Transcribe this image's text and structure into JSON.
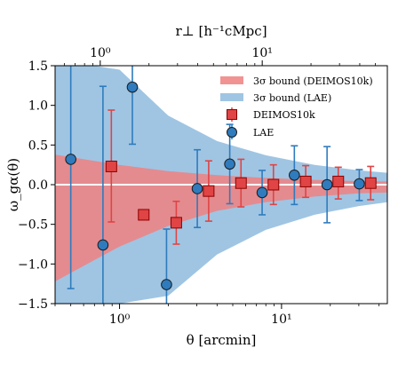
{
  "chart_data": {
    "type": "scatter",
    "xscale": "log",
    "xlim": [
      0.4,
      45
    ],
    "ylim": [
      -1.5,
      1.5
    ],
    "xlabel": "θ [arcmin]",
    "ylabel": "ω_gα(θ)",
    "top_xlabel": "r⊥ [h⁻¹cMpc]",
    "x_ticks": [
      1,
      10
    ],
    "x_tick_labels": [
      "10⁰",
      "10¹"
    ],
    "y_ticks": [
      -1.5,
      -1.0,
      -0.5,
      0.0,
      0.5,
      1.0,
      1.5
    ],
    "y_tick_labels": [
      "−1.5",
      "−1.0",
      "−0.5",
      "0.0",
      "0.5",
      "1.0",
      "1.5"
    ],
    "top_ticks": [
      1,
      10
    ],
    "top_tick_labels": [
      "10⁰",
      "10¹"
    ],
    "top_tick_theta": [
      0.76,
      7.6
    ],
    "zero_line": true,
    "legend_position": "top-right",
    "colors": {
      "deimos_band": "#f08080",
      "lae_band": "#7fb2d9",
      "deimos_marker": "#e04444",
      "deimos_edge": "#8b0000",
      "lae_marker": "#2f7bbd",
      "lae_edge": "#1a1a1a",
      "lae_err": "#2f7bbd",
      "deimos_err": "#e04444"
    },
    "bands": [
      {
        "name": "3σ bound (DEIMOS10k)",
        "x": [
          0.4,
          0.7,
          1.0,
          2.0,
          4.0,
          8.0,
          16.0,
          30.0,
          45.0
        ],
        "upper": [
          0.38,
          0.3,
          0.25,
          0.17,
          0.12,
          0.085,
          0.06,
          0.045,
          0.04
        ],
        "lower": [
          -1.22,
          -0.95,
          -0.78,
          -0.52,
          -0.33,
          -0.22,
          -0.15,
          -0.11,
          -0.1
        ]
      },
      {
        "name": "3σ bound (LAE)",
        "x": [
          0.4,
          0.7,
          1.0,
          2.0,
          4.0,
          8.0,
          16.0,
          30.0,
          45.0
        ],
        "upper": [
          1.5,
          1.5,
          1.45,
          0.87,
          0.55,
          0.37,
          0.25,
          0.18,
          0.15
        ],
        "lower": [
          -1.5,
          -1.5,
          -1.5,
          -1.4,
          -0.88,
          -0.57,
          -0.38,
          -0.27,
          -0.22
        ]
      }
    ],
    "series": [
      {
        "name": "DEIMOS10k",
        "marker": "square",
        "points": [
          {
            "x": 0.89,
            "y": 0.23,
            "yerr_low": 0.7,
            "yerr_high": 0.71
          },
          {
            "x": 1.41,
            "y": -0.38,
            "yerr_low": 0.05,
            "yerr_high": 0.05
          },
          {
            "x": 2.24,
            "y": -0.48,
            "yerr_low": 0.27,
            "yerr_high": 0.27
          },
          {
            "x": 3.55,
            "y": -0.08,
            "yerr_low": 0.38,
            "yerr_high": 0.38
          },
          {
            "x": 5.62,
            "y": 0.02,
            "yerr_low": 0.3,
            "yerr_high": 0.3
          },
          {
            "x": 8.91,
            "y": 0.0,
            "yerr_low": 0.25,
            "yerr_high": 0.25
          },
          {
            "x": 14.1,
            "y": 0.04,
            "yerr_low": 0.2,
            "yerr_high": 0.2
          },
          {
            "x": 22.4,
            "y": 0.04,
            "yerr_low": 0.22,
            "yerr_high": 0.18
          },
          {
            "x": 35.5,
            "y": 0.02,
            "yerr_low": 0.21,
            "yerr_high": 0.21
          }
        ]
      },
      {
        "name": "LAE",
        "marker": "circle",
        "points": [
          {
            "x": 0.5,
            "y": 0.32,
            "yerr_low": 1.63,
            "yerr_high": 1.25
          },
          {
            "x": 0.79,
            "y": -0.76,
            "yerr_low": 0.8,
            "yerr_high": 2.0
          },
          {
            "x": 1.2,
            "y": 1.23,
            "yerr_low": 0.72,
            "yerr_high": 0.3
          },
          {
            "x": 1.95,
            "y": -1.26,
            "yerr_low": 0.3,
            "yerr_high": 0.7
          },
          {
            "x": 3.02,
            "y": -0.05,
            "yerr_low": 0.49,
            "yerr_high": 0.49
          },
          {
            "x": 4.79,
            "y": 0.26,
            "yerr_low": 0.5,
            "yerr_high": 0.5
          },
          {
            "x": 7.59,
            "y": -0.1,
            "yerr_low": 0.28,
            "yerr_high": 0.28
          },
          {
            "x": 12.0,
            "y": 0.12,
            "yerr_low": 0.37,
            "yerr_high": 0.37
          },
          {
            "x": 19.1,
            "y": 0.0,
            "yerr_low": 0.48,
            "yerr_high": 0.48
          },
          {
            "x": 30.2,
            "y": 0.01,
            "yerr_low": 0.21,
            "yerr_high": 0.18
          }
        ]
      }
    ]
  }
}
